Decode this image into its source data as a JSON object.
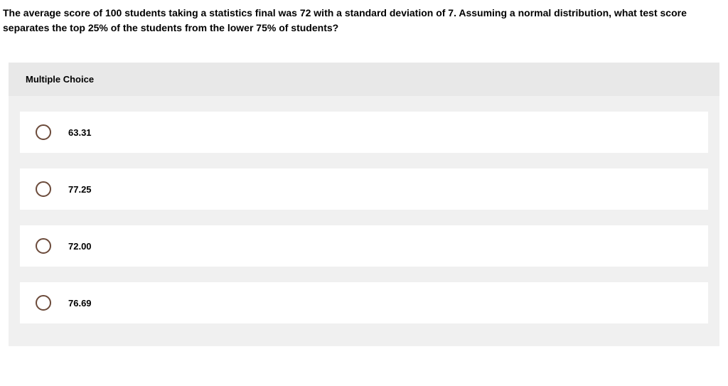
{
  "question": {
    "text": "The average score of 100 students taking a statistics final was 72 with a standard deviation of 7. Assuming a normal distribution, what test score separates the top 25% of the students from the lower 75% of students?"
  },
  "section_header": "Multiple Choice",
  "options": [
    {
      "label": "63.31"
    },
    {
      "label": "77.25"
    },
    {
      "label": "72.00"
    },
    {
      "label": "76.69"
    }
  ],
  "colors": {
    "page_bg": "#ffffff",
    "panel_bg": "#f0f0f0",
    "header_bg": "#e8e8e8",
    "option_bg": "#ffffff",
    "radio_border": "#6b4a3a",
    "text": "#000000"
  },
  "typography": {
    "question_fontsize": 14,
    "header_fontsize": 13,
    "option_fontsize": 13,
    "font_weight": "bold"
  }
}
